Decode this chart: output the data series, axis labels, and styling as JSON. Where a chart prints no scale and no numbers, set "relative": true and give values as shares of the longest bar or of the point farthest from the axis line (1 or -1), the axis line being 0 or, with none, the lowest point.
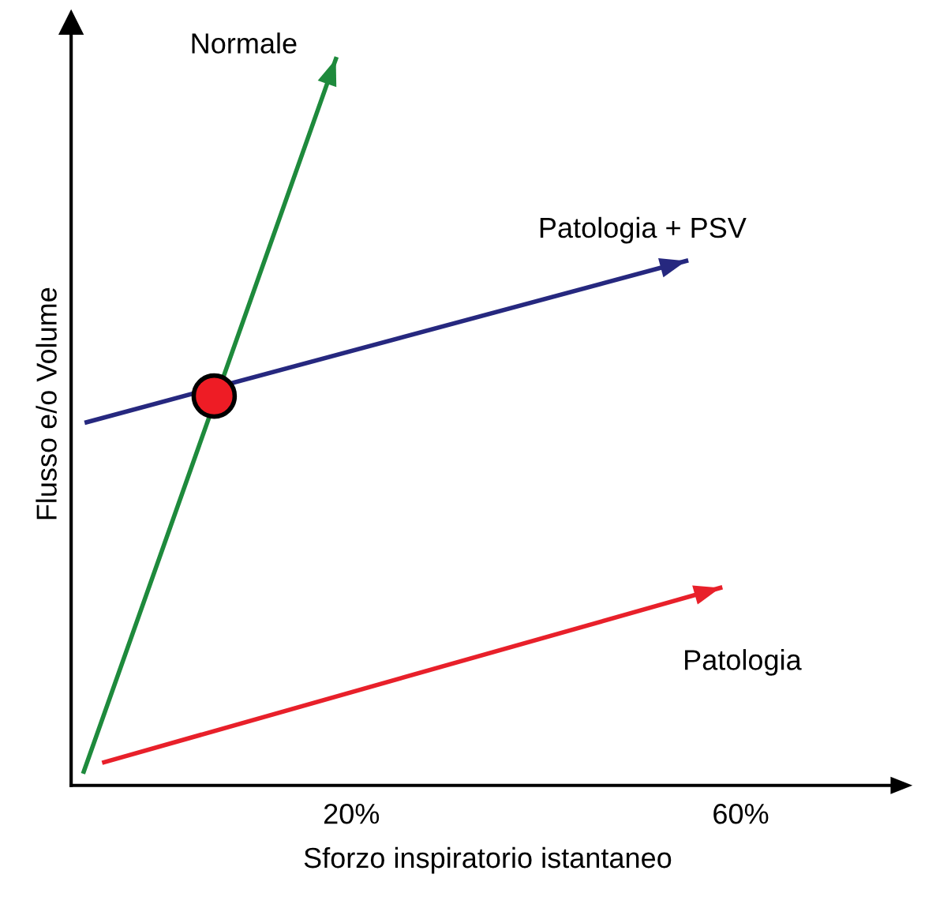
{
  "chart_data": {
    "type": "line",
    "relative": true,
    "xlabel": "Sforzo inspiratorio istantaneo",
    "ylabel": "Flusso e/o Volume",
    "xlim": [
      -8.8,
      76.8
    ],
    "xticks": [
      {
        "value": 20,
        "label": "20%"
      },
      {
        "value": 60,
        "label": "60%"
      }
    ],
    "grid": false,
    "legend": false,
    "series": [
      {
        "name": "Normale",
        "color": "#1e8a3c",
        "x": [
          -7.5,
          18.4
        ],
        "values": [
          0.019,
          1
        ]
      },
      {
        "name": "Patologia + PSV",
        "color": "#26287f",
        "x": [
          -7.2,
          54.4
        ],
        "values": [
          0.5,
          0.722
        ]
      },
      {
        "name": "Patologia",
        "color": "#e8202a",
        "x": [
          -5.4,
          57.9
        ],
        "values": [
          0.032,
          0.272
        ]
      },
      {
        "type": "scatter",
        "marker": "circle",
        "color": "#ee1c25",
        "x": [
          5.9
        ],
        "values": [
          0.536
        ]
      }
    ]
  }
}
